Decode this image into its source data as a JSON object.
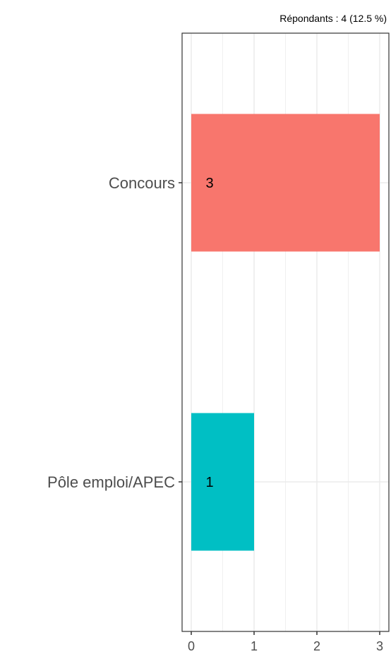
{
  "chart_data": {
    "type": "bar",
    "orientation": "horizontal",
    "subtitle": "Répondants : 4 (12.5 %)",
    "categories": [
      "Concours",
      "Pôle emploi/APEC"
    ],
    "values": [
      3,
      1
    ],
    "data_labels": [
      "3",
      "1"
    ],
    "colors": [
      "#F8766D",
      "#00BFC4"
    ],
    "xlim": [
      0,
      3
    ],
    "x_ticks": [
      0,
      1,
      2,
      3
    ],
    "grid": true,
    "xlabel": "",
    "ylabel": ""
  }
}
